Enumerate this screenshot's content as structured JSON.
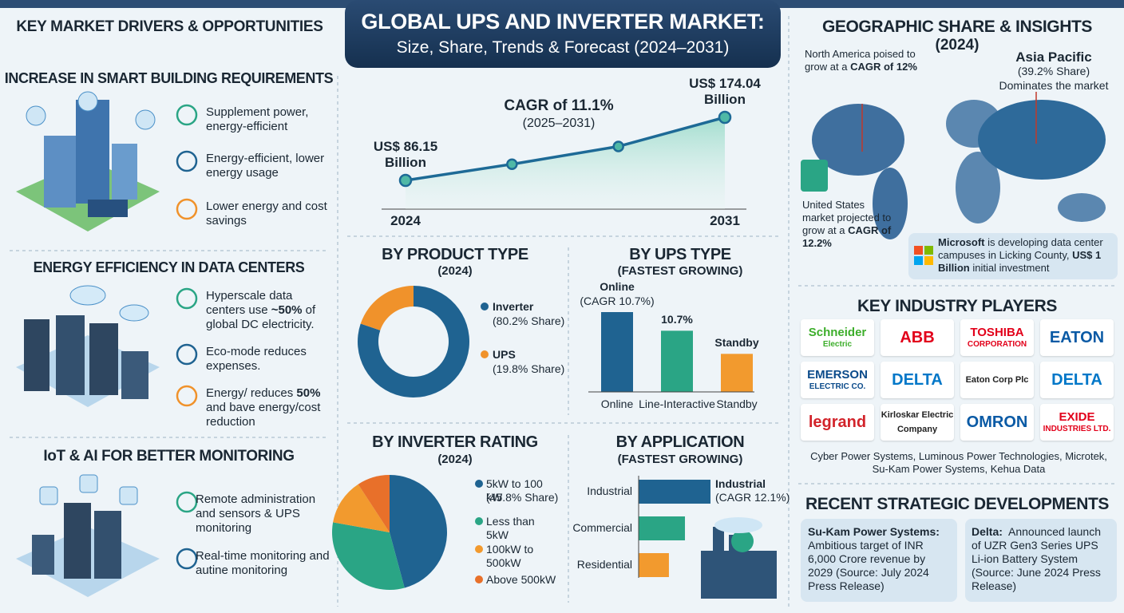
{
  "header": {
    "title": "GLOBAL UPS AND INVERTER MARKET:",
    "subtitle": "Size, Share, Trends & Forecast (2024–2031)"
  },
  "drivers": {
    "title": "KEY MARKET DRIVERS & OPPORTUNITIES",
    "sections": [
      {
        "title": "INCREASE IN SMART BUILDING REQUIREMENTS",
        "items": [
          [
            "Supplement power, energy-efficient"
          ],
          [
            "Energy-efficient, lower energy usage"
          ],
          [
            "Lower energy and cost savings"
          ]
        ]
      },
      {
        "title": "ENERGY EFFICIENCY IN DATA CENTERS",
        "items": [
          [
            "Hyperscale data centers use ",
            {
              "bold": "~50%"
            },
            " of global DC electricity."
          ],
          [
            "Eco-mode reduces expenses."
          ],
          [
            "Energy/ reduces ",
            {
              "bold": "50%"
            },
            " and bave energy/cost reduction"
          ]
        ]
      },
      {
        "title": "IoT & AI FOR BETTER MONITORING",
        "items": [
          [
            "Remote administration and sensors & UPS monitoring"
          ],
          [
            "Real-time monitoring and autine monitoring"
          ]
        ]
      }
    ]
  },
  "chart_data": [
    {
      "type": "line",
      "title": "CAGR of 11.1%",
      "subtitle": "(2025–2031)",
      "categories": [
        "2024",
        null,
        null,
        "2031"
      ],
      "values": [
        86.15,
        108.7,
        133.5,
        174.04
      ],
      "value_labels": [
        "US$ 86.15 Billion",
        null,
        null,
        "US$ 174.04 Billion"
      ],
      "color": "#1d6a96"
    },
    {
      "type": "donut",
      "title": "BY PRODUCT TYPE",
      "subtitle": "(2024)",
      "categories": [
        "Inverter",
        "UPS"
      ],
      "values": [
        80.2,
        19.8
      ],
      "value_labels": [
        "(80.2% Share)",
        "(19.8% Share)"
      ],
      "colors": [
        "#1f6391",
        "#f0922b"
      ]
    },
    {
      "type": "bar",
      "title": "BY UPS TYPE",
      "subtitle": "(FASTEST GROWING)",
      "categories": [
        "Online",
        "Line-Interactive",
        "Standby"
      ],
      "values": [
        10.7,
        8.2,
        5.1
      ],
      "annotations": [
        [
          "Online",
          "(CAGR 10.7%)"
        ],
        [
          "10.7%"
        ],
        [
          "Standby"
        ]
      ],
      "colors": [
        "#1f6391",
        "#2aa585",
        "#f29a2e"
      ]
    },
    {
      "type": "pie",
      "title": "BY INVERTER RATING",
      "subtitle": "(2024)",
      "categories": [
        "5kW to 100 kW",
        "Less than 5kW",
        "100kW to 500kW",
        "Above 500kW"
      ],
      "values": [
        45.8,
        32,
        13,
        9.2
      ],
      "value_labels": [
        "(45.8% Share)",
        null,
        null,
        null
      ],
      "colors": [
        "#1f6391",
        "#2aa585",
        "#f29a2e",
        "#e8702a"
      ]
    },
    {
      "type": "hbar",
      "title": "BY APPLICATION",
      "subtitle": "(FASTEST GROWING)",
      "categories": [
        "Industrial",
        "Commercial",
        "Residential"
      ],
      "values": [
        12.1,
        7.8,
        5.1
      ],
      "annotations": [
        [
          "Industrial",
          "(CAGR 12.1%)"
        ],
        null,
        null
      ],
      "colors": [
        "#1f6391",
        "#2aa585",
        "#f29a2e"
      ]
    }
  ],
  "geography": {
    "title": "GEOGRAPHIC SHARE & INSIGHTS",
    "subtitle": "(2024)",
    "north_america": [
      "North America poised to grow at a ",
      {
        "bold": "CAGR of 12%"
      }
    ],
    "asia_pacific": {
      "name": "Asia Pacific",
      "share": "(39.2% Share)",
      "note": "Dominates the market"
    },
    "united_states": [
      "United States market projected to grow at a ",
      {
        "bold": "CAGR of 12.2%"
      }
    ],
    "microsoft": [
      {
        "bold": "Microsoft"
      },
      " is developing data center campuses in Licking County, ",
      {
        "bold": "US$ 1 Billion"
      },
      " initial investment"
    ]
  },
  "players": {
    "title": "KEY INDUSTRY PLAYERS",
    "logos": [
      {
        "lines": [
          "Schneider",
          "Electric"
        ],
        "color": "#3dae2b"
      },
      {
        "lines": [
          "ABB"
        ],
        "color": "#e2001a"
      },
      {
        "lines": [
          "TOSHIBA",
          "CORPORATION"
        ],
        "color": "#e2001a"
      },
      {
        "lines": [
          "EATON"
        ],
        "color": "#0a5aa5"
      },
      {
        "lines": [
          "EMERSON",
          "ELECTRIC CO."
        ],
        "color": "#0a4a8a"
      },
      {
        "lines": [
          "DELTA"
        ],
        "color": "#0077c8"
      },
      {
        "lines": [
          "Eaton Corp Plc"
        ],
        "color": "#222222"
      },
      {
        "lines": [
          "DELTA"
        ],
        "color": "#0077c8"
      },
      {
        "lines": [
          "legrand"
        ],
        "color": "#d2232a"
      },
      {
        "lines": [
          "Kirloskar Electric Company"
        ],
        "color": "#222222"
      },
      {
        "lines": [
          "OMRON"
        ],
        "color": "#0a5aa5"
      },
      {
        "lines": [
          "EXIDE",
          "INDUSTRIES LTD."
        ],
        "color": "#e2001a"
      }
    ],
    "others": "Cyber Power Systems, Luminous Power Technologies, Microtek, Su-Kam Power Systems, Kehua Data"
  },
  "developments": {
    "title": "RECENT STRATEGIC DEVELOPMENTS",
    "items": [
      {
        "company": "Su-Kam Power Systems:",
        "text": "Ambitious target of INR 6,000 Crore revenue by 2029 (Source: July 2024 Press Release)"
      },
      {
        "company": "Delta:",
        "text": "Announced launch of UZR Gen3 Series UPS Li-ion Battery System (Source: June 2024 Press Release)"
      }
    ]
  }
}
